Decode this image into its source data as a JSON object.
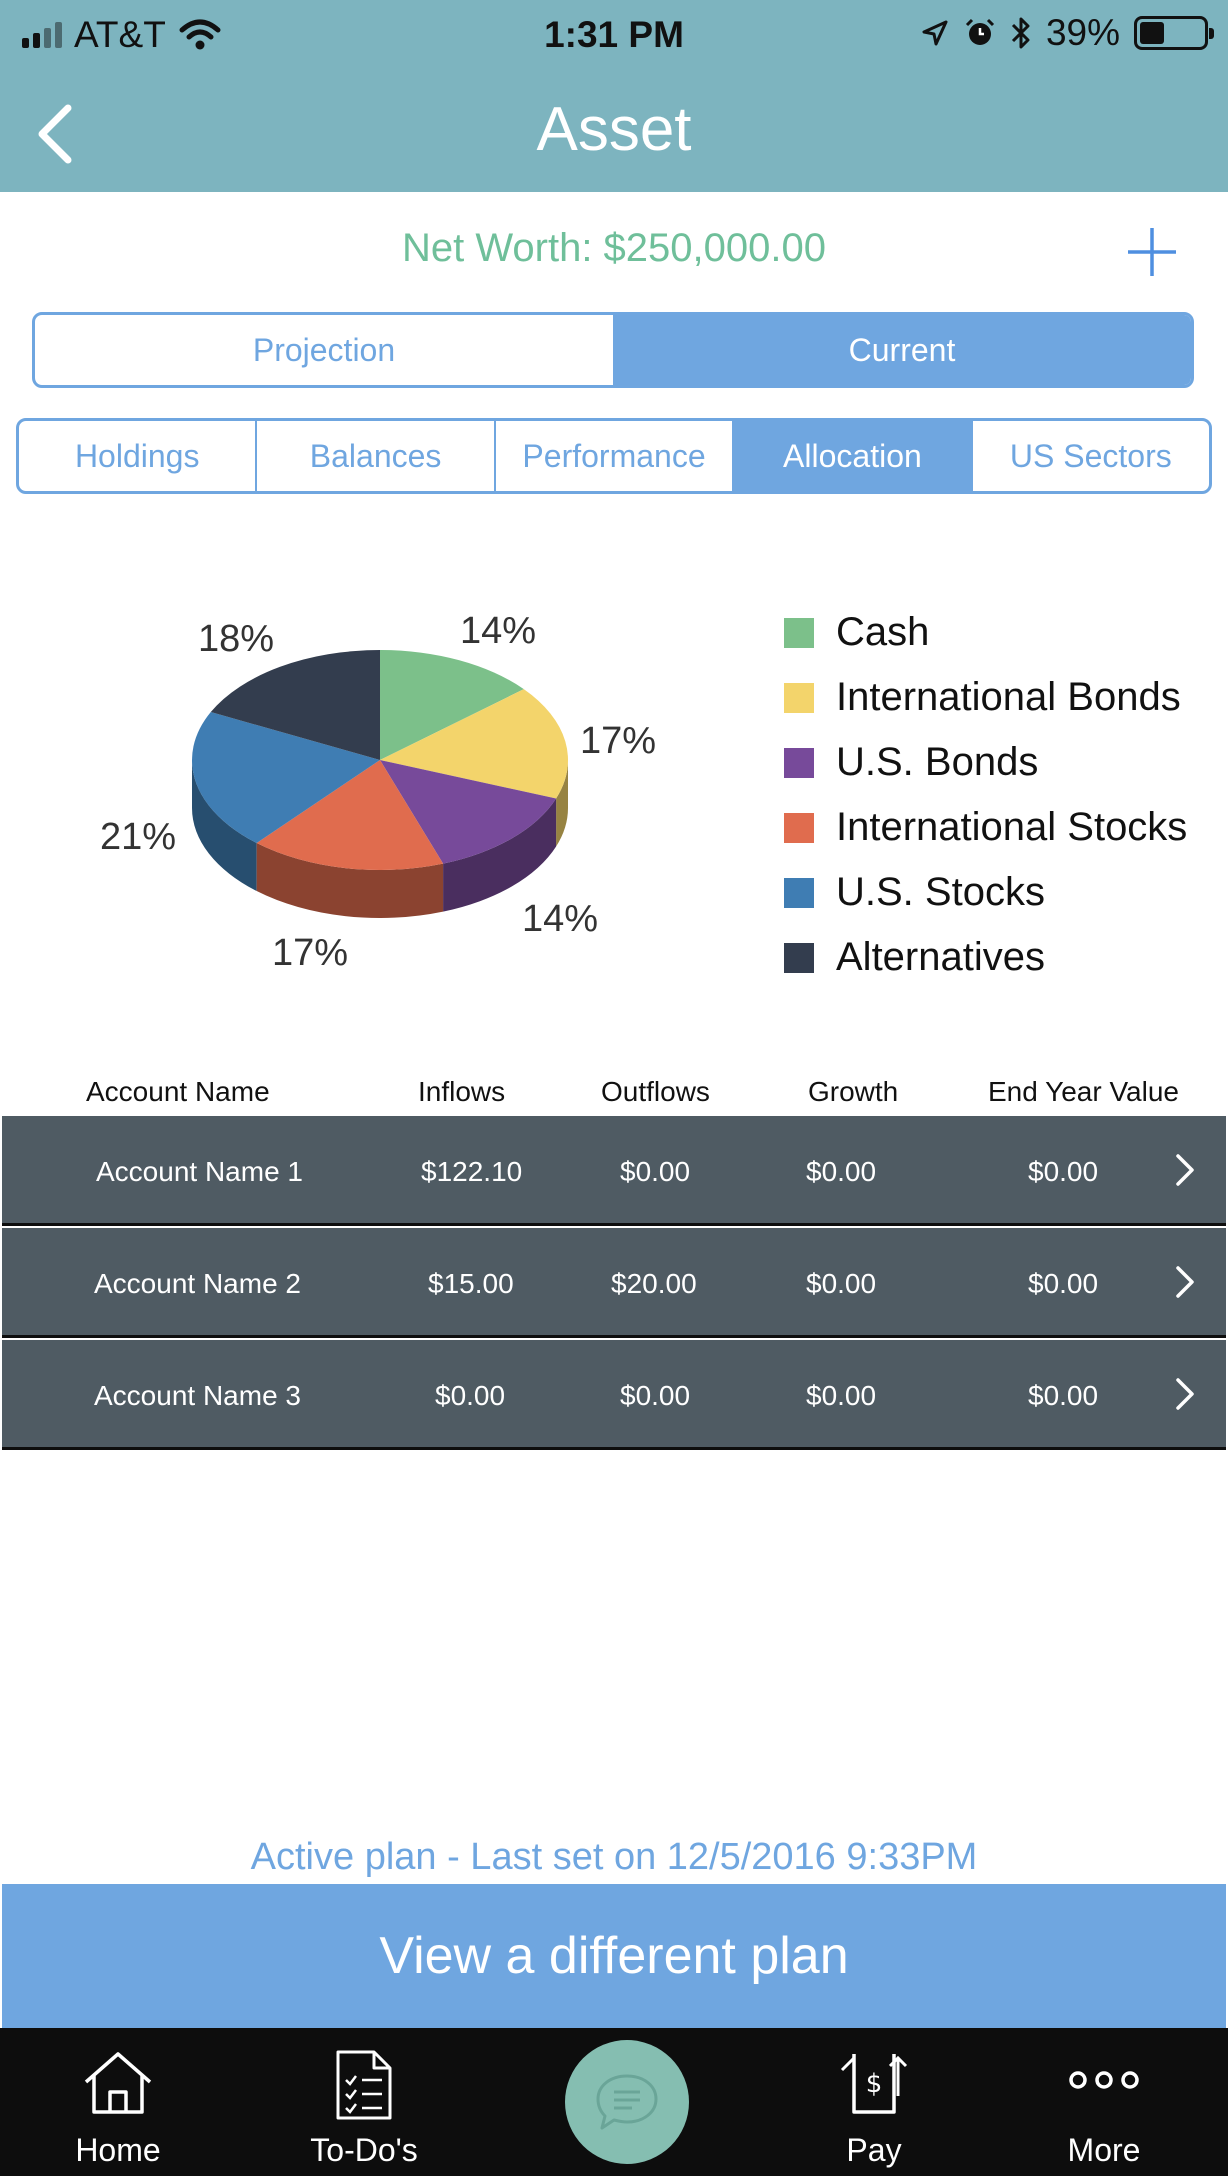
{
  "status_bar": {
    "carrier": "AT&T",
    "time": "1:31 PM",
    "battery": "39%",
    "battery_level": 0.39
  },
  "header": {
    "title": "Asset",
    "back_icon": "chevron-left-icon",
    "bg_color": "#7db4bf"
  },
  "summary": {
    "net_worth": "Net Worth: $250,000.00",
    "add_icon": "plus-icon"
  },
  "view_toggle": {
    "options": [
      "Projection",
      "Current"
    ],
    "selected": "Current"
  },
  "detail_tabs": {
    "options": [
      "Holdings",
      "Balances",
      "Performance",
      "Allocation",
      "US Sectors"
    ],
    "selected": "Allocation"
  },
  "chart_data": {
    "type": "pie",
    "title": "",
    "style": "3d",
    "slices": [
      {
        "label": "Cash",
        "value": 14,
        "display": "14%",
        "color": "#7cc08a"
      },
      {
        "label": "International Bonds",
        "value": 17,
        "display": "17%",
        "color": "#f3d46b"
      },
      {
        "label": "U.S. Bonds",
        "value": 14,
        "display": "14%",
        "color": "#774a9a"
      },
      {
        "label": "International Stocks",
        "value": 17,
        "display": "17%",
        "color": "#e06c4e"
      },
      {
        "label": "U.S. Stocks",
        "value": 21,
        "display": "21%",
        "color": "#3f7db3"
      },
      {
        "label": "Alternatives",
        "value": 18,
        "display": "18%",
        "color": "#333d4e"
      }
    ],
    "legend_position": "right"
  },
  "table": {
    "headers": [
      "Account Name",
      "Inflows",
      "Outflows",
      "Growth",
      "End Year Value"
    ],
    "rows": [
      [
        "Account Name 1",
        "$122.10",
        "$0.00",
        "$0.00",
        "$0.00"
      ],
      [
        "Account Name 2",
        "$15.00",
        "$20.00",
        "$0.00",
        "$0.00"
      ],
      [
        "Account Name 3",
        "$0.00",
        "$0.00",
        "$0.00",
        "$0.00"
      ]
    ]
  },
  "plan": {
    "status": "Active plan - Last set on 12/5/2016 9:33PM",
    "button_label": "View a different plan"
  },
  "tab_bar": {
    "items": [
      {
        "label": "Home",
        "icon": "home-icon"
      },
      {
        "label": "To-Do's",
        "icon": "checklist-icon"
      },
      {
        "label": "",
        "icon": "chat-icon"
      },
      {
        "label": "Pay",
        "icon": "pay-icon"
      },
      {
        "label": "More",
        "icon": "more-icon"
      }
    ]
  }
}
